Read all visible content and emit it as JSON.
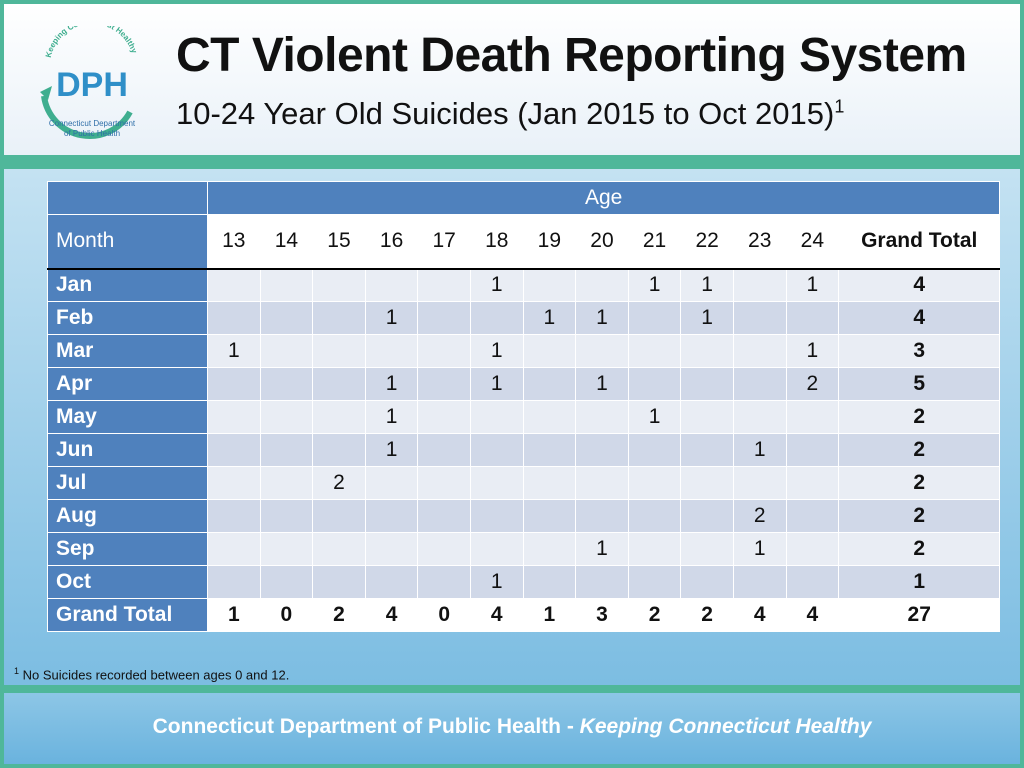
{
  "header": {
    "logo_text": "DPH",
    "logo_arc_text": "Keeping Connecticut Healthy",
    "logo_caption_1": "Connecticut Department",
    "logo_caption_2": "of Public Health",
    "title": "CT Violent Death Reporting System",
    "subtitle": "10-24 Year Old Suicides (Jan 2015 to Oct 2015)",
    "subtitle_sup": "1"
  },
  "table": {
    "age_header": "Age",
    "month_header": "Month",
    "ages": [
      "13",
      "14",
      "15",
      "16",
      "17",
      "18",
      "19",
      "20",
      "21",
      "22",
      "23",
      "24"
    ],
    "grand_total_header": "Grand Total",
    "rows": [
      {
        "month": "Jan",
        "cells": [
          "",
          "",
          "",
          "",
          "",
          "1",
          "",
          "",
          "1",
          "1",
          "",
          "1"
        ],
        "total": "4"
      },
      {
        "month": "Feb",
        "cells": [
          "",
          "",
          "",
          "1",
          "",
          "",
          "1",
          "1",
          "",
          "1",
          "",
          ""
        ],
        "total": "4"
      },
      {
        "month": "Mar",
        "cells": [
          "1",
          "",
          "",
          "",
          "",
          "1",
          "",
          "",
          "",
          "",
          "",
          "1"
        ],
        "total": "3"
      },
      {
        "month": "Apr",
        "cells": [
          "",
          "",
          "",
          "1",
          "",
          "1",
          "",
          "1",
          "",
          "",
          "",
          "2"
        ],
        "total": "5"
      },
      {
        "month": "May",
        "cells": [
          "",
          "",
          "",
          "1",
          "",
          "",
          "",
          "",
          "1",
          "",
          "",
          ""
        ],
        "total": "2"
      },
      {
        "month": "Jun",
        "cells": [
          "",
          "",
          "",
          "1",
          "",
          "",
          "",
          "",
          "",
          "",
          "1",
          ""
        ],
        "total": "2"
      },
      {
        "month": "Jul",
        "cells": [
          "",
          "",
          "2",
          "",
          "",
          "",
          "",
          "",
          "",
          "",
          "",
          ""
        ],
        "total": "2"
      },
      {
        "month": "Aug",
        "cells": [
          "",
          "",
          "",
          "",
          "",
          "",
          "",
          "",
          "",
          "",
          "2",
          ""
        ],
        "total": "2"
      },
      {
        "month": "Sep",
        "cells": [
          "",
          "",
          "",
          "",
          "",
          "",
          "",
          "1",
          "",
          "",
          "1",
          ""
        ],
        "total": "2"
      },
      {
        "month": "Oct",
        "cells": [
          "",
          "",
          "",
          "",
          "",
          "1",
          "",
          "",
          "",
          "",
          "",
          ""
        ],
        "total": "1"
      }
    ],
    "grand_total_label": "Grand Total",
    "grand_totals": [
      "1",
      "0",
      "2",
      "4",
      "0",
      "4",
      "1",
      "3",
      "2",
      "2",
      "4",
      "4"
    ],
    "grand_total_sum": "27"
  },
  "footnote": {
    "sup": "1",
    "text": " No Suicides recorded between ages 0 and 12."
  },
  "footer": {
    "org": "Connecticut Department of Public Health",
    "separator": " - ",
    "tagline": "Keeping Connecticut Healthy"
  },
  "colors": {
    "accent_green": "#4fb79a",
    "table_blue": "#4f81bd",
    "row_light": "#e9edf4",
    "row_dark": "#d0d8e8",
    "logo_blue": "#2f8fc8",
    "logo_green": "#3fae8f"
  }
}
